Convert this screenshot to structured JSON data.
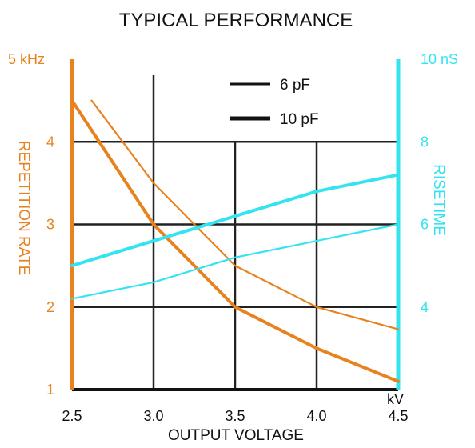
{
  "chart_data": {
    "type": "line",
    "title": "TYPICAL PERFORMANCE",
    "xlabel": "OUTPUT VOLTAGE",
    "x_unit": "kV",
    "xlim": [
      2.5,
      4.5
    ],
    "x_ticks": [
      "2.5",
      "3.0",
      "3.5",
      "4.0",
      "4.5"
    ],
    "y_left": {
      "label": "REPETITION RATE",
      "unit": "kHz",
      "lim": [
        1,
        5
      ],
      "ticks": [
        "1",
        "2",
        "3",
        "4",
        "5 kHz"
      ],
      "color": "#E8821E"
    },
    "y_right": {
      "label": "RISETIME",
      "unit": "nS",
      "lim": [
        2,
        10
      ],
      "ticks": [
        "4",
        "6",
        "8",
        "10 nS"
      ],
      "color": "#33E4F0"
    },
    "legend": [
      {
        "label": "6 pF",
        "line": "thin"
      },
      {
        "label": "10 pF",
        "line": "thick"
      }
    ],
    "legend_position": "top-center",
    "series": [
      {
        "axis": "left",
        "capacitance": "6 pF",
        "line": "thin",
        "color": "#E8821E",
        "points": [
          [
            2.62,
            4.5
          ],
          [
            3.0,
            3.5
          ],
          [
            3.5,
            2.5
          ],
          [
            4.0,
            2.0
          ],
          [
            4.5,
            1.73
          ]
        ]
      },
      {
        "axis": "left",
        "capacitance": "10 pF",
        "line": "thick",
        "color": "#E8821E",
        "points": [
          [
            2.5,
            4.5
          ],
          [
            3.0,
            3.0
          ],
          [
            3.5,
            2.0
          ],
          [
            4.0,
            1.5
          ],
          [
            4.5,
            1.1
          ]
        ]
      },
      {
        "axis": "right",
        "capacitance": "6 pF",
        "line": "thin",
        "color": "#33E4F0",
        "points": [
          [
            2.5,
            4.2
          ],
          [
            3.0,
            4.6
          ],
          [
            3.5,
            5.2
          ],
          [
            4.0,
            5.6
          ],
          [
            4.5,
            6.0
          ]
        ]
      },
      {
        "axis": "right",
        "capacitance": "10 pF",
        "line": "thick",
        "color": "#33E4F0",
        "points": [
          [
            2.5,
            5.0
          ],
          [
            3.0,
            5.6
          ],
          [
            3.5,
            6.2
          ],
          [
            4.0,
            6.8
          ],
          [
            4.5,
            7.2
          ]
        ]
      }
    ],
    "grid": true
  }
}
